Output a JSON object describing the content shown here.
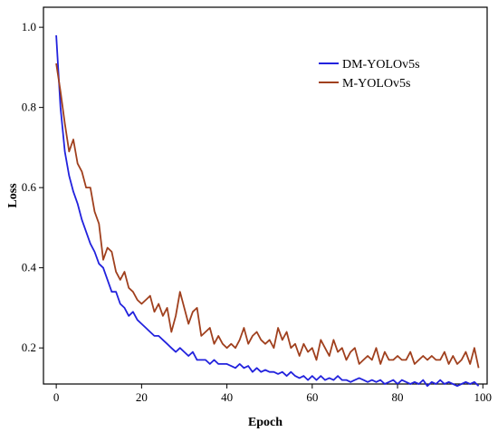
{
  "chart_data": {
    "type": "line",
    "title": "",
    "xlabel": "Epoch",
    "ylabel": "Loss",
    "xlim": [
      -3,
      101
    ],
    "ylim": [
      0.11,
      1.05
    ],
    "xticks": [
      0,
      20,
      40,
      60,
      80,
      100
    ],
    "xtick_labels": [
      "0",
      "20",
      "40",
      "60",
      "80",
      "100"
    ],
    "yticks": [
      0.2,
      0.4,
      0.6,
      0.8,
      1.0
    ],
    "ytick_labels": [
      "0.2",
      "0.4",
      "0.6",
      "0.8",
      "1.0"
    ],
    "grid": false,
    "legend_position": "top-right",
    "x": [
      0,
      1,
      2,
      3,
      4,
      5,
      6,
      7,
      8,
      9,
      10,
      11,
      12,
      13,
      14,
      15,
      16,
      17,
      18,
      19,
      20,
      21,
      22,
      23,
      24,
      25,
      26,
      27,
      28,
      29,
      30,
      31,
      32,
      33,
      34,
      35,
      36,
      37,
      38,
      39,
      40,
      41,
      42,
      43,
      44,
      45,
      46,
      47,
      48,
      49,
      50,
      51,
      52,
      53,
      54,
      55,
      56,
      57,
      58,
      59,
      60,
      61,
      62,
      63,
      64,
      65,
      66,
      67,
      68,
      69,
      70,
      71,
      72,
      73,
      74,
      75,
      76,
      77,
      78,
      79,
      80,
      81,
      82,
      83,
      84,
      85,
      86,
      87,
      88,
      89,
      90,
      91,
      92,
      93,
      94,
      95,
      96,
      97,
      98,
      99
    ],
    "series": [
      {
        "name": "DM-YOLOv5s",
        "color": "#2222dd",
        "values": [
          0.98,
          0.8,
          0.69,
          0.63,
          0.59,
          0.56,
          0.52,
          0.49,
          0.46,
          0.44,
          0.41,
          0.4,
          0.37,
          0.34,
          0.34,
          0.31,
          0.3,
          0.28,
          0.29,
          0.27,
          0.26,
          0.25,
          0.24,
          0.23,
          0.23,
          0.22,
          0.21,
          0.2,
          0.19,
          0.2,
          0.19,
          0.18,
          0.19,
          0.17,
          0.17,
          0.17,
          0.16,
          0.17,
          0.16,
          0.16,
          0.16,
          0.155,
          0.15,
          0.16,
          0.15,
          0.155,
          0.14,
          0.15,
          0.14,
          0.145,
          0.14,
          0.14,
          0.135,
          0.14,
          0.13,
          0.14,
          0.13,
          0.125,
          0.13,
          0.12,
          0.13,
          0.12,
          0.13,
          0.12,
          0.125,
          0.12,
          0.13,
          0.12,
          0.12,
          0.115,
          0.12,
          0.125,
          0.12,
          0.115,
          0.12,
          0.115,
          0.12,
          0.11,
          0.115,
          0.12,
          0.11,
          0.12,
          0.115,
          0.11,
          0.115,
          0.11,
          0.12,
          0.105,
          0.115,
          0.11,
          0.12,
          0.11,
          0.115,
          0.11,
          0.105,
          0.11,
          0.115,
          0.11,
          0.115,
          0.105
        ]
      },
      {
        "name": "M-YOLOv5s",
        "color": "#a0401e",
        "values": [
          0.91,
          0.84,
          0.76,
          0.69,
          0.72,
          0.66,
          0.64,
          0.6,
          0.6,
          0.54,
          0.51,
          0.42,
          0.45,
          0.44,
          0.39,
          0.37,
          0.39,
          0.35,
          0.34,
          0.32,
          0.31,
          0.32,
          0.33,
          0.29,
          0.31,
          0.28,
          0.3,
          0.24,
          0.28,
          0.34,
          0.3,
          0.26,
          0.29,
          0.3,
          0.23,
          0.24,
          0.25,
          0.21,
          0.23,
          0.21,
          0.2,
          0.21,
          0.2,
          0.22,
          0.25,
          0.21,
          0.23,
          0.24,
          0.22,
          0.21,
          0.22,
          0.2,
          0.25,
          0.22,
          0.24,
          0.2,
          0.21,
          0.18,
          0.21,
          0.19,
          0.2,
          0.17,
          0.22,
          0.2,
          0.18,
          0.22,
          0.19,
          0.2,
          0.17,
          0.19,
          0.2,
          0.16,
          0.17,
          0.18,
          0.17,
          0.2,
          0.16,
          0.19,
          0.17,
          0.17,
          0.18,
          0.17,
          0.17,
          0.19,
          0.16,
          0.17,
          0.18,
          0.17,
          0.18,
          0.17,
          0.17,
          0.19,
          0.16,
          0.18,
          0.16,
          0.17,
          0.19,
          0.16,
          0.2,
          0.15
        ]
      }
    ]
  }
}
